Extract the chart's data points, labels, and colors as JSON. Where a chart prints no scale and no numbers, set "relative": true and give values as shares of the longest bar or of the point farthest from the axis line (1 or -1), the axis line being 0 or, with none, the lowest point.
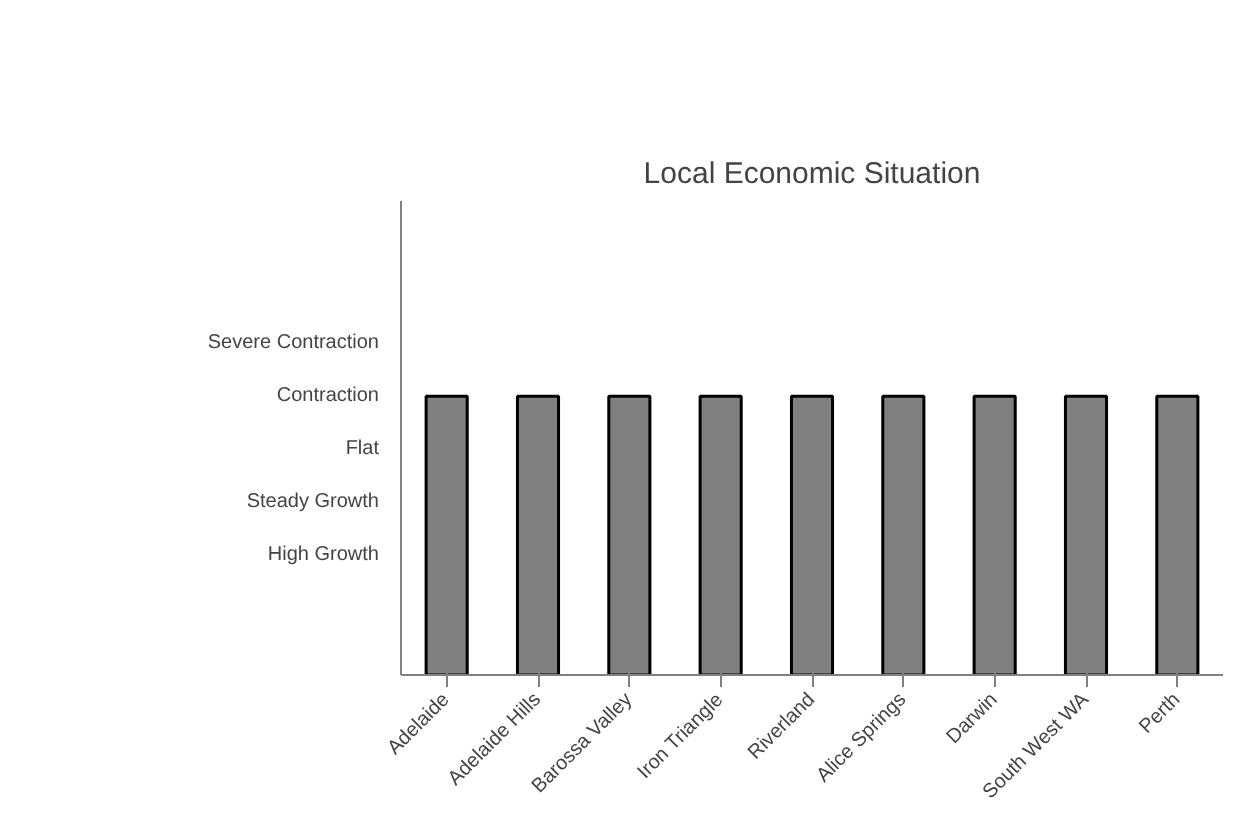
{
  "chart_data": {
    "type": "bar",
    "title": "Local Economic Situation",
    "categories": [
      "Adelaide",
      "Adelaide Hills",
      "Barossa Valley",
      "Iron Triangle",
      "Riverland",
      "Alice Springs",
      "Darwin",
      "South West WA",
      "Perth"
    ],
    "values": [
      1,
      1,
      1,
      1,
      1,
      1,
      1,
      1,
      1
    ],
    "relative": true,
    "color": "#808080",
    "annotations": [
      "Severe Contraction",
      "Contraction",
      "Flat",
      "Steady Growth",
      "High Growth"
    ],
    "grid": false
  }
}
